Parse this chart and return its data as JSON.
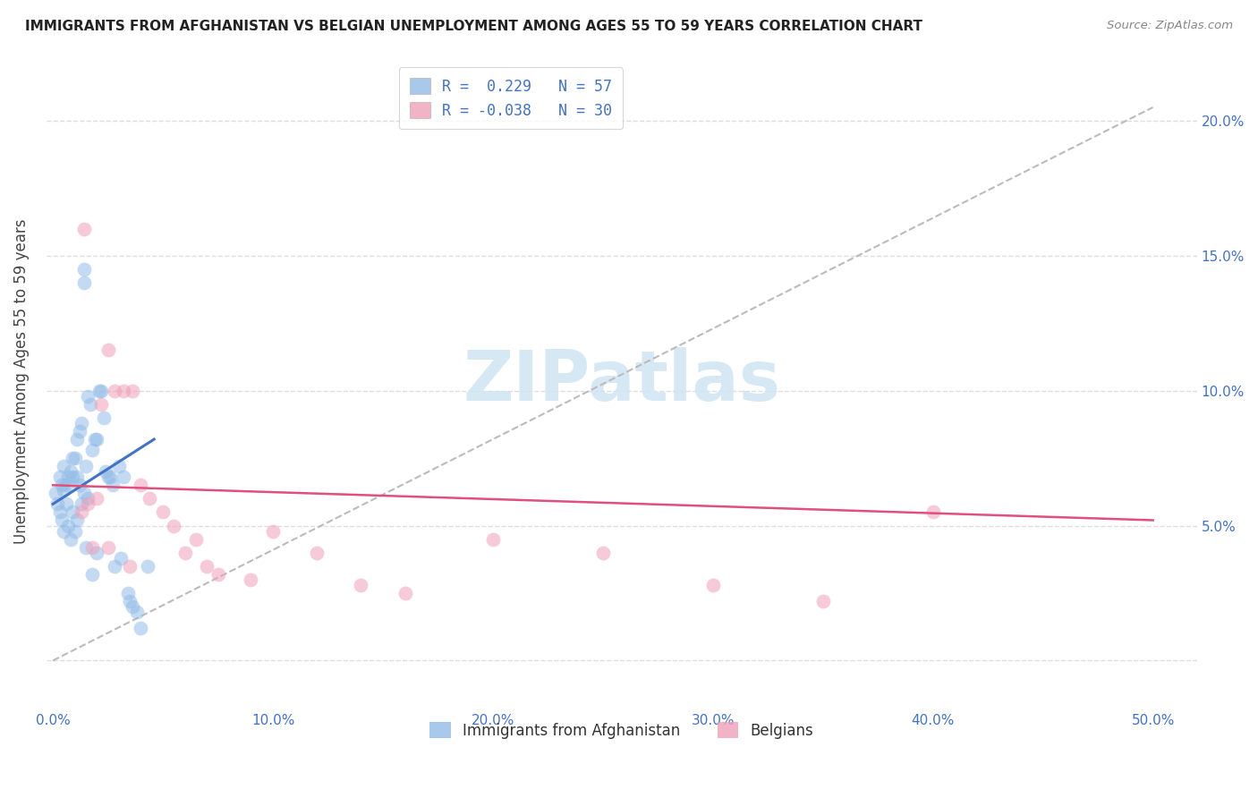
{
  "title": "IMMIGRANTS FROM AFGHANISTAN VS BELGIAN UNEMPLOYMENT AMONG AGES 55 TO 59 YEARS CORRELATION CHART",
  "source": "Source: ZipAtlas.com",
  "ylabel": "Unemployment Among Ages 55 to 59 years",
  "xlim": [
    -0.003,
    0.52
  ],
  "ylim": [
    -0.018,
    0.225
  ],
  "xticks": [
    0.0,
    0.1,
    0.2,
    0.3,
    0.4,
    0.5
  ],
  "xtick_labels": [
    "0.0%",
    "10.0%",
    "20.0%",
    "30.0%",
    "40.0%",
    "50.0%"
  ],
  "yticks": [
    0.0,
    0.05,
    0.1,
    0.15,
    0.2
  ],
  "ytick_labels_right": [
    "",
    "5.0%",
    "10.0%",
    "15.0%",
    "20.0%"
  ],
  "legend_r1": "R =  0.229",
  "legend_n1": "N = 57",
  "legend_r2": "R = -0.038",
  "legend_n2": "N = 30",
  "color_blue": "#92bce8",
  "color_pink": "#f0a0b8",
  "color_blue_line": "#4472C4",
  "color_pink_line": "#e0507a",
  "color_gray_dash": "#bbbbbb",
  "watermark_color": "#d0e4f4",
  "blue_x": [
    0.001,
    0.002,
    0.003,
    0.003,
    0.004,
    0.004,
    0.005,
    0.005,
    0.005,
    0.006,
    0.006,
    0.007,
    0.007,
    0.008,
    0.008,
    0.009,
    0.009,
    0.009,
    0.01,
    0.01,
    0.011,
    0.011,
    0.011,
    0.012,
    0.012,
    0.013,
    0.013,
    0.014,
    0.014,
    0.014,
    0.015,
    0.015,
    0.016,
    0.016,
    0.017,
    0.018,
    0.018,
    0.019,
    0.02,
    0.02,
    0.021,
    0.022,
    0.023,
    0.024,
    0.025,
    0.026,
    0.027,
    0.028,
    0.03,
    0.031,
    0.032,
    0.034,
    0.035,
    0.036,
    0.038,
    0.04,
    0.043
  ],
  "blue_y": [
    0.062,
    0.058,
    0.055,
    0.068,
    0.052,
    0.065,
    0.063,
    0.048,
    0.072,
    0.065,
    0.058,
    0.068,
    0.05,
    0.07,
    0.045,
    0.068,
    0.055,
    0.075,
    0.075,
    0.048,
    0.082,
    0.052,
    0.068,
    0.085,
    0.065,
    0.088,
    0.058,
    0.145,
    0.14,
    0.062,
    0.072,
    0.042,
    0.098,
    0.06,
    0.095,
    0.078,
    0.032,
    0.082,
    0.082,
    0.04,
    0.1,
    0.1,
    0.09,
    0.07,
    0.068,
    0.068,
    0.065,
    0.035,
    0.072,
    0.038,
    0.068,
    0.025,
    0.022,
    0.02,
    0.018,
    0.012,
    0.035
  ],
  "pink_x": [
    0.013,
    0.014,
    0.016,
    0.018,
    0.02,
    0.022,
    0.025,
    0.028,
    0.032,
    0.036,
    0.04,
    0.044,
    0.05,
    0.055,
    0.06,
    0.065,
    0.07,
    0.075,
    0.09,
    0.1,
    0.12,
    0.14,
    0.16,
    0.2,
    0.25,
    0.3,
    0.35,
    0.4,
    0.025,
    0.035
  ],
  "pink_y": [
    0.055,
    0.16,
    0.058,
    0.042,
    0.06,
    0.095,
    0.115,
    0.1,
    0.1,
    0.1,
    0.065,
    0.06,
    0.055,
    0.05,
    0.04,
    0.045,
    0.035,
    0.032,
    0.03,
    0.048,
    0.04,
    0.028,
    0.025,
    0.045,
    0.04,
    0.028,
    0.022,
    0.055,
    0.042,
    0.035
  ],
  "blue_trend_x": [
    0.0,
    0.046
  ],
  "blue_trend_y": [
    0.058,
    0.082
  ],
  "pink_trend_x": [
    0.0,
    0.5
  ],
  "pink_trend_y": [
    0.065,
    0.052
  ],
  "gray_trend_x": [
    0.0,
    0.5
  ],
  "gray_trend_y": [
    0.0,
    0.205
  ]
}
